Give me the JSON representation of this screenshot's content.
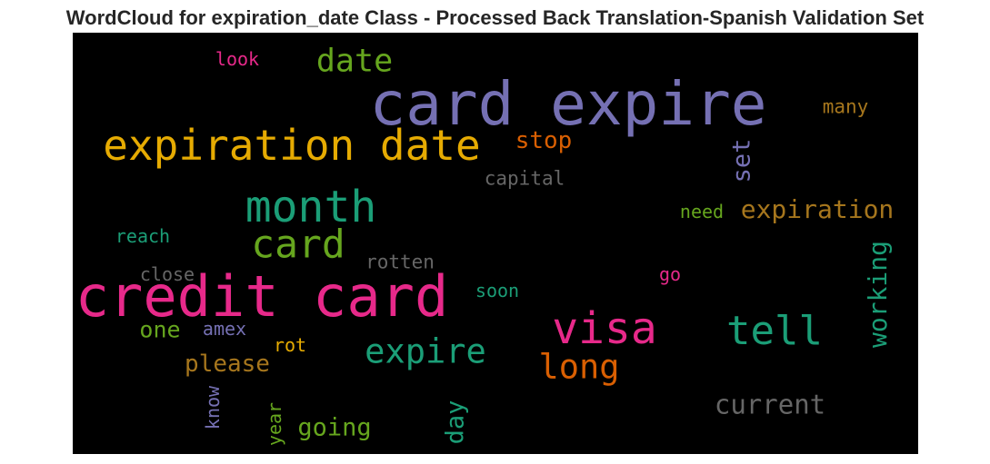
{
  "title": "WordCloud for expiration_date Class - Processed Back Translation-Spanish Validation Set",
  "words": [
    {
      "text": "card expire",
      "color": "#7570b3"
    },
    {
      "text": "credit card",
      "color": "#e7298a"
    },
    {
      "text": "expiration date",
      "color": "#e6ab02"
    },
    {
      "text": "month",
      "color": "#1b9e77"
    },
    {
      "text": "card",
      "color": "#66a61e"
    },
    {
      "text": "visa",
      "color": "#e7298a"
    },
    {
      "text": "tell",
      "color": "#1b9e77"
    },
    {
      "text": "expire",
      "color": "#1b9e77"
    },
    {
      "text": "long",
      "color": "#d95f02"
    },
    {
      "text": "date",
      "color": "#66a61e"
    },
    {
      "text": "expiration",
      "color": "#a6761d"
    },
    {
      "text": "current",
      "color": "#666666"
    },
    {
      "text": "stop",
      "color": "#d95f02"
    },
    {
      "text": "please",
      "color": "#a6761d"
    },
    {
      "text": "going",
      "color": "#66a61e"
    },
    {
      "text": "working",
      "color": "#1b9e77"
    },
    {
      "text": "set",
      "color": "#7570b3"
    },
    {
      "text": "day",
      "color": "#1b9e77"
    },
    {
      "text": "one",
      "color": "#66a61e"
    },
    {
      "text": "capital",
      "color": "#666666"
    },
    {
      "text": "rotten",
      "color": "#666666"
    },
    {
      "text": "many",
      "color": "#a6761d"
    },
    {
      "text": "close",
      "color": "#666666"
    },
    {
      "text": "reach",
      "color": "#1b9e77"
    },
    {
      "text": "need",
      "color": "#66a61e"
    },
    {
      "text": "soon",
      "color": "#1b9e77"
    },
    {
      "text": "amex",
      "color": "#7570b3"
    },
    {
      "text": "look",
      "color": "#e7298a"
    },
    {
      "text": "go",
      "color": "#e7298a"
    },
    {
      "text": "rot",
      "color": "#e6ab02"
    },
    {
      "text": "know",
      "color": "#7570b3"
    },
    {
      "text": "year",
      "color": "#66a61e"
    }
  ]
}
